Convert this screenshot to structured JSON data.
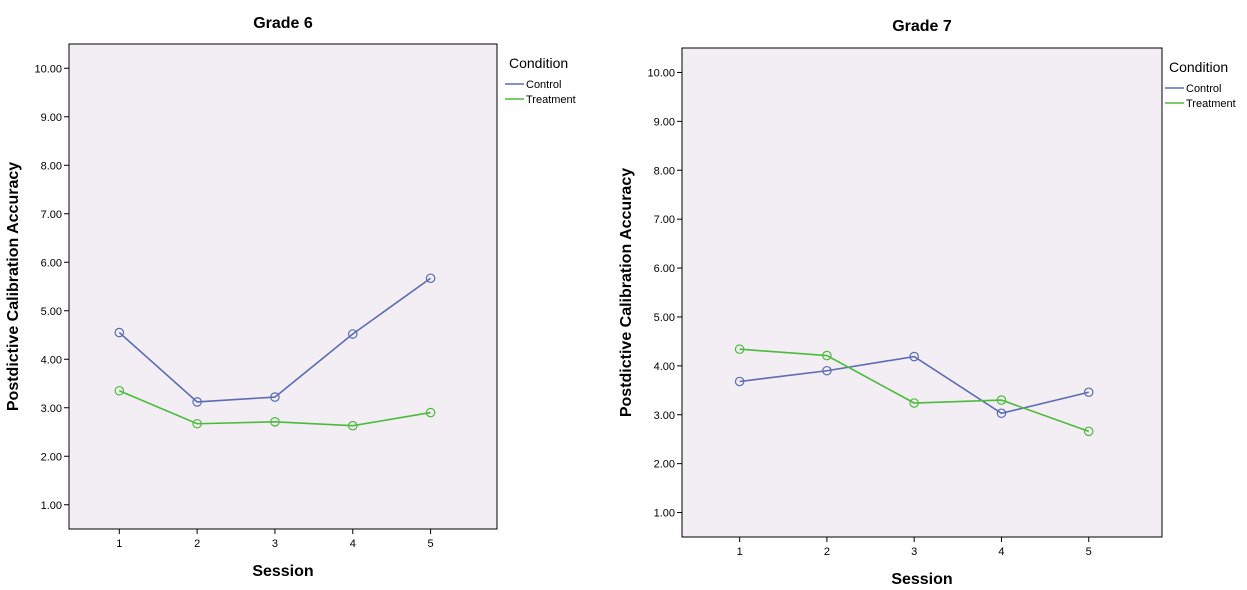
{
  "chart_data": [
    {
      "type": "line",
      "title": "Grade 6",
      "xlabel": "Session",
      "ylabel": "Postdictive Calibration Accuracy",
      "x": [
        "1",
        "2",
        "3",
        "4",
        "5"
      ],
      "yticks": [
        "1.00",
        "2.00",
        "3.00",
        "4.00",
        "5.00",
        "6.00",
        "7.00",
        "8.00",
        "9.00",
        "10.00"
      ],
      "ylim": [
        0.5,
        10.5
      ],
      "grid": false,
      "legend": {
        "title": "Condition",
        "placement": "right"
      },
      "series": [
        {
          "name": "Control",
          "color": "#5b6bb5",
          "marker": "circle-open",
          "values": [
            4.55,
            3.12,
            3.22,
            4.52,
            5.67
          ]
        },
        {
          "name": "Treatment",
          "color": "#4cbb3c",
          "marker": "circle-open",
          "values": [
            3.35,
            2.67,
            2.71,
            2.63,
            2.9
          ]
        }
      ]
    },
    {
      "type": "line",
      "title": "Grade 7",
      "xlabel": "Session",
      "ylabel": "Postdictive Calibration Accuracy",
      "x": [
        "1",
        "2",
        "3",
        "4",
        "5"
      ],
      "yticks": [
        "1.00",
        "2.00",
        "3.00",
        "4.00",
        "5.00",
        "6.00",
        "7.00",
        "8.00",
        "9.00",
        "10.00"
      ],
      "ylim": [
        0.5,
        10.5
      ],
      "grid": false,
      "legend": {
        "title": "Condition",
        "placement": "right"
      },
      "series": [
        {
          "name": "Control",
          "color": "#5b6bb5",
          "marker": "circle-open",
          "values": [
            3.68,
            3.9,
            4.19,
            3.03,
            3.46
          ]
        },
        {
          "name": "Treatment",
          "color": "#4cbb3c",
          "marker": "circle-open",
          "values": [
            4.34,
            4.21,
            3.24,
            3.3,
            2.66
          ]
        }
      ]
    }
  ],
  "style": {
    "plot_background": "#f2eef3",
    "axis_color": "#000000"
  }
}
